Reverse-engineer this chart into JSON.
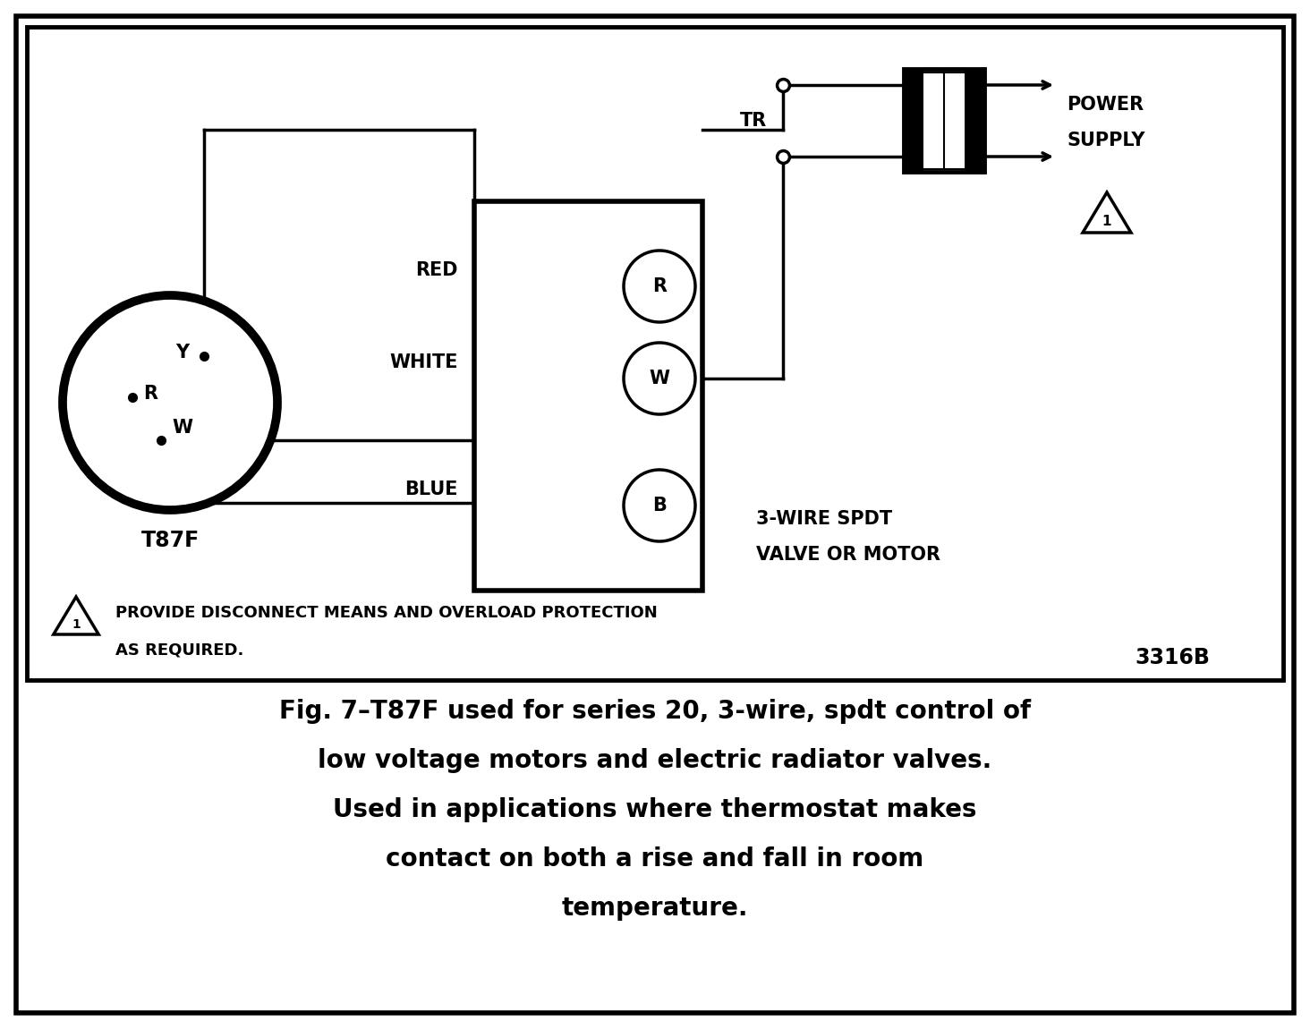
{
  "bg_color": "#ffffff",
  "caption_line1": "Fig. 7–T87F used for series 20, 3-wire, spdt control of",
  "caption_line2": "low voltage motors and electric radiator valves.",
  "caption_line3": "Used in applications where thermostat makes",
  "caption_line4": "contact on both a rise and fall in room",
  "caption_line5": "temperature.",
  "note_line1": "PROVIDE DISCONNECT MEANS AND OVERLOAD PROTECTION",
  "note_line2": "AS REQUIRED.",
  "diagram_id": "3316B",
  "thermostat_label": "T87F",
  "terminal_labels": [
    "R",
    "W",
    "B"
  ],
  "wire_labels": [
    "RED",
    "WHITE",
    "BLUE"
  ],
  "tr_label": "TR",
  "power_supply_label": "POWER\nSUPPLY",
  "valve_label": "3-WIRE SPDT\nVALVE OR MOTOR"
}
